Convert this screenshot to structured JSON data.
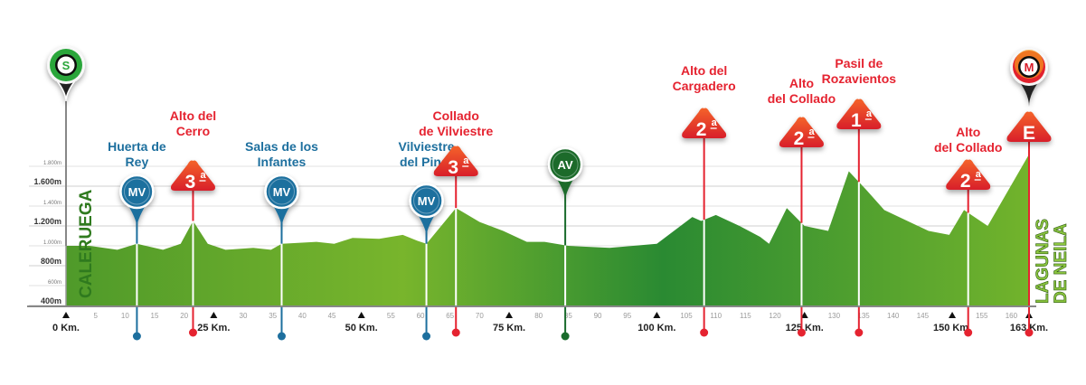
{
  "chart_data": {
    "type": "area",
    "title": "",
    "xlabel": "",
    "ylabel": "",
    "xlim": [
      0,
      163
    ],
    "ylim": [
      400,
      1900
    ],
    "grid": true,
    "y_ticks": [
      {
        "value": 400,
        "label": "400m",
        "major": true
      },
      {
        "value": 600,
        "label": "600m",
        "major": false
      },
      {
        "value": 800,
        "label": "800m",
        "major": true
      },
      {
        "value": 1000,
        "label": "1.000m",
        "major": false
      },
      {
        "value": 1200,
        "label": "1.200m",
        "major": true
      },
      {
        "value": 1400,
        "label": "1.400m",
        "major": false
      },
      {
        "value": 1600,
        "label": "1.600m",
        "major": true
      },
      {
        "value": 1800,
        "label": "1.800m",
        "major": false
      }
    ],
    "x_minor_ticks": [
      5,
      10,
      15,
      20,
      30,
      35,
      40,
      45,
      55,
      60,
      65,
      70,
      80,
      85,
      90,
      95,
      105,
      110,
      115,
      120,
      130,
      135,
      140,
      145,
      155,
      160
    ],
    "x_major_ticks": [
      {
        "value": 0,
        "label": "0 Km."
      },
      {
        "value": 25,
        "label": "25 Km."
      },
      {
        "value": 50,
        "label": "50 Km."
      },
      {
        "value": 75,
        "label": "75 Km."
      },
      {
        "value": 100,
        "label": "100 Km."
      },
      {
        "value": 125,
        "label": "125 Km."
      },
      {
        "value": 150,
        "label": "150 Km."
      },
      {
        "value": 163,
        "label": "163 Km."
      }
    ],
    "profile": {
      "km": [
        0,
        4,
        8.7,
        12,
        16.4,
        19.4,
        21.5,
        24,
        27,
        31.7,
        34.7,
        36.5,
        42.4,
        45.4,
        48.5,
        53,
        57,
        59.5,
        61,
        63.5,
        66,
        70,
        74,
        78,
        81,
        85,
        92,
        100,
        106,
        107.5,
        110,
        114,
        117.5,
        119,
        122,
        125,
        129,
        132.5,
        135.5,
        138.5,
        146,
        149.5,
        152,
        156,
        163
      ],
      "elev": [
        1000,
        1000,
        960,
        1020,
        960,
        1020,
        1250,
        1020,
        960,
        980,
        960,
        1020,
        1040,
        1020,
        1080,
        1070,
        1110,
        1050,
        1020,
        1200,
        1380,
        1240,
        1150,
        1040,
        1040,
        1000,
        980,
        1020,
        1290,
        1250,
        1310,
        1200,
        1090,
        1020,
        1380,
        1200,
        1150,
        1750,
        1560,
        1360,
        1150,
        1110,
        1360,
        1200,
        1920
      ]
    },
    "start_town": "CALERUEGA",
    "finish_town_lines": [
      "LAGUNAS",
      "DE NEILA"
    ],
    "colors": {
      "profile_light": "#78b52c",
      "profile_dark": "#2a8a32",
      "town_label": "#2f7a1e",
      "finish_label": "#8cc63f",
      "climb": "#e52330",
      "sprint": "#1d6f9e",
      "feed": "#1a6b2c",
      "start": "#2aa63a"
    },
    "markers": [
      {
        "km": 0,
        "type": "start",
        "badge": "S",
        "icon": "start-pin-icon",
        "label_lines": []
      },
      {
        "km": 12,
        "type": "sprint",
        "badge": "MV",
        "icon": "intermediate-sprint-icon",
        "label_lines": [
          "Huerta de",
          "Rey"
        ]
      },
      {
        "km": 21.5,
        "type": "climb",
        "badge": "3",
        "sup": "a",
        "icon": "climb-category-icon",
        "label_lines": [
          "Alto del",
          "Cerro"
        ]
      },
      {
        "km": 36.5,
        "type": "sprint",
        "badge": "MV",
        "icon": "intermediate-sprint-icon",
        "label_lines": [
          "Salas de los",
          "Infantes"
        ]
      },
      {
        "km": 61,
        "type": "sprint",
        "badge": "MV",
        "icon": "intermediate-sprint-icon",
        "label_lines": [
          "Vilviestre",
          "del Pinar"
        ]
      },
      {
        "km": 66,
        "type": "climb",
        "badge": "3",
        "sup": "a",
        "icon": "climb-category-icon",
        "label_lines": [
          "Collado",
          "de Vilviestre"
        ]
      },
      {
        "km": 84.5,
        "type": "feed",
        "badge": "AV",
        "icon": "feed-zone-icon",
        "label_lines": []
      },
      {
        "km": 108,
        "type": "climb",
        "badge": "2",
        "sup": "a",
        "icon": "climb-category-icon",
        "label_lines": [
          "Alto del",
          "Cargadero"
        ]
      },
      {
        "km": 124.5,
        "type": "climb",
        "badge": "2",
        "sup": "a",
        "icon": "climb-category-icon",
        "label_lines": [
          "Alto",
          "del Collado"
        ]
      },
      {
        "km": 134.2,
        "type": "climb",
        "badge": "1",
        "sup": "a",
        "icon": "climb-category-icon",
        "label_lines": [
          "Pasil de",
          "Rozavientos"
        ]
      },
      {
        "km": 152.7,
        "type": "climb",
        "badge": "2",
        "sup": "a",
        "icon": "climb-category-icon",
        "label_lines": [
          "Alto",
          "del Collado"
        ]
      },
      {
        "km": 163,
        "type": "finish",
        "badge": "E",
        "badge2": "M",
        "icon": "finish-icon",
        "label_lines": []
      }
    ]
  }
}
